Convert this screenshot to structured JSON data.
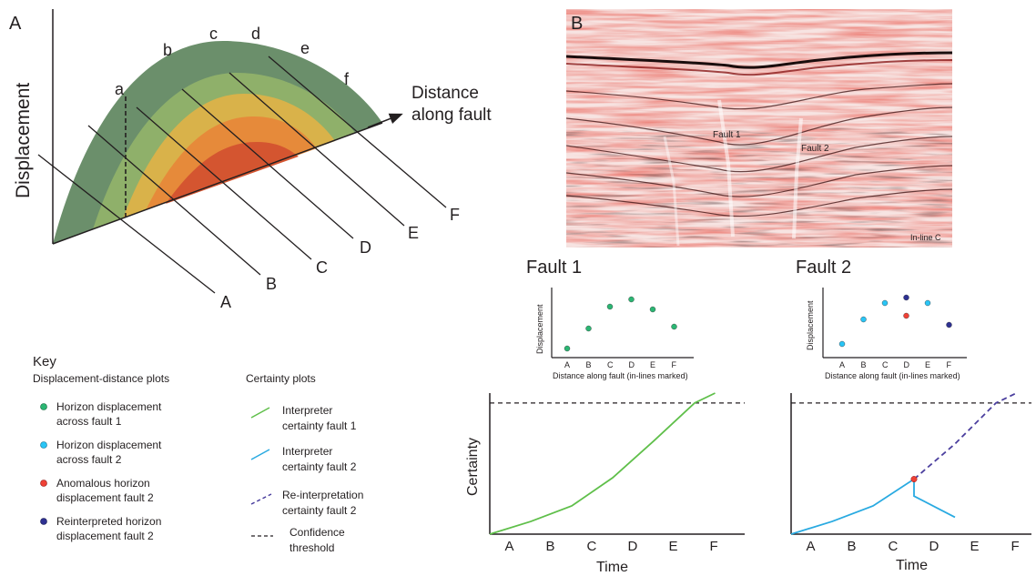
{
  "panel_a": {
    "label": "A",
    "y_axis_label": "Displacement",
    "x_axis_label_line1": "Distance",
    "x_axis_label_line2": "along fault",
    "top_letters": [
      "a",
      "b",
      "c",
      "d",
      "e",
      "f"
    ],
    "line_letters": [
      "A",
      "B",
      "C",
      "D",
      "E",
      "F"
    ],
    "colors": [
      "#6b8f6b",
      "#8fb06a",
      "#d9b24a",
      "#e68a3a",
      "#d45530"
    ]
  },
  "panel_b": {
    "label": "B",
    "fault1": "Fault 1",
    "fault2": "Fault 2",
    "inline": "In-line C"
  },
  "key": {
    "title": "Key",
    "dd_title": "Displacement-distance plots",
    "cert_title": "Certainty plots",
    "items": [
      {
        "line1": "Horizon displacement",
        "line2": "across fault 1",
        "color": "#2bb673"
      },
      {
        "line1": "Horizon displacement",
        "line2": "across fault 2",
        "color": "#29c5f6"
      },
      {
        "line1": "Anomalous horizon",
        "line2": "displacement fault 2",
        "color": "#ef4136"
      },
      {
        "line1": "Reinterpreted horizon",
        "line2": " displacement fault 2",
        "color": "#2e3192"
      }
    ],
    "cert_items": [
      {
        "line1": "Interpreter",
        "line2": "certainty fault 1",
        "color": "#5fbf4a"
      },
      {
        "line1": "Interpreter",
        "line2": "certainty fault 2",
        "color": "#29aae1"
      },
      {
        "line1": "Re-interpretation",
        "line2": "certainty fault 2",
        "color": "#4b3f9e"
      },
      {
        "line1": "Confidence",
        "line2": "threshold",
        "color": "#231f20"
      }
    ]
  },
  "fault1_plot": {
    "title": "Fault 1",
    "ylabel": "Displacement",
    "xlabel": "Distance along fault (in-lines marked)"
  },
  "fault2_plot": {
    "title": "Fault 2",
    "ylabel": "Displacement",
    "xlabel": "Distance along fault (in-lines marked)"
  },
  "cert1_plot": {
    "ylabel": "Certainty",
    "xlabel": "Time"
  },
  "cert2_plot": {
    "xlabel": "Time"
  },
  "chart_data": [
    {
      "type": "scatter",
      "title": "Fault 1",
      "xlabel": "Distance along fault (in-lines marked)",
      "ylabel": "Displacement",
      "categories": [
        "A",
        "B",
        "C",
        "D",
        "E",
        "F"
      ],
      "series": [
        {
          "values": [
            1,
            3.2,
            5.6,
            6.4,
            5.3,
            3.4
          ],
          "color": "#2bb673"
        }
      ],
      "ylim": [
        0,
        8
      ]
    },
    {
      "type": "scatter",
      "title": "Fault 2",
      "xlabel": "Distance along fault (in-lines marked)",
      "ylabel": "Displacement",
      "categories": [
        "A",
        "B",
        "C",
        "D",
        "E",
        "F"
      ],
      "series": [
        {
          "x": [
            "A",
            "B",
            "C",
            "E"
          ],
          "values": [
            1.5,
            4.2,
            6.0,
            6.0
          ],
          "color": "#29c5f6"
        },
        {
          "x": [
            "D"
          ],
          "values": [
            4.6
          ],
          "color": "#ef4136"
        },
        {
          "x": [
            "D",
            "F"
          ],
          "values": [
            6.6,
            3.6
          ],
          "color": "#2e3192"
        }
      ],
      "ylim": [
        0,
        8
      ]
    },
    {
      "type": "line",
      "xlabel": "Time",
      "ylabel": "Certainty",
      "categories": [
        "A",
        "B",
        "C",
        "D",
        "E",
        "F"
      ],
      "threshold": 0.93,
      "series": [
        {
          "x": [
            0,
            1,
            2,
            3,
            4,
            5,
            5.5
          ],
          "values": [
            0,
            0.09,
            0.2,
            0.4,
            0.66,
            0.93,
            1.0
          ],
          "color": "#5fbf4a"
        }
      ],
      "ylim": [
        0,
        1
      ]
    },
    {
      "type": "line",
      "xlabel": "Time",
      "categories": [
        "A",
        "B",
        "C",
        "D",
        "E",
        "F"
      ],
      "threshold": 0.93,
      "series": [
        {
          "x": [
            0,
            1,
            2,
            3,
            3,
            4
          ],
          "values": [
            0,
            0.09,
            0.2,
            0.39,
            0.27,
            0.12
          ],
          "color": "#29aae1"
        },
        {
          "x": [
            3,
            4,
            5,
            5.5
          ],
          "values": [
            0.39,
            0.64,
            0.93,
            1.0
          ],
          "color": "#4b3f9e",
          "dashed": true
        }
      ],
      "ylim": [
        0,
        1
      ]
    }
  ]
}
